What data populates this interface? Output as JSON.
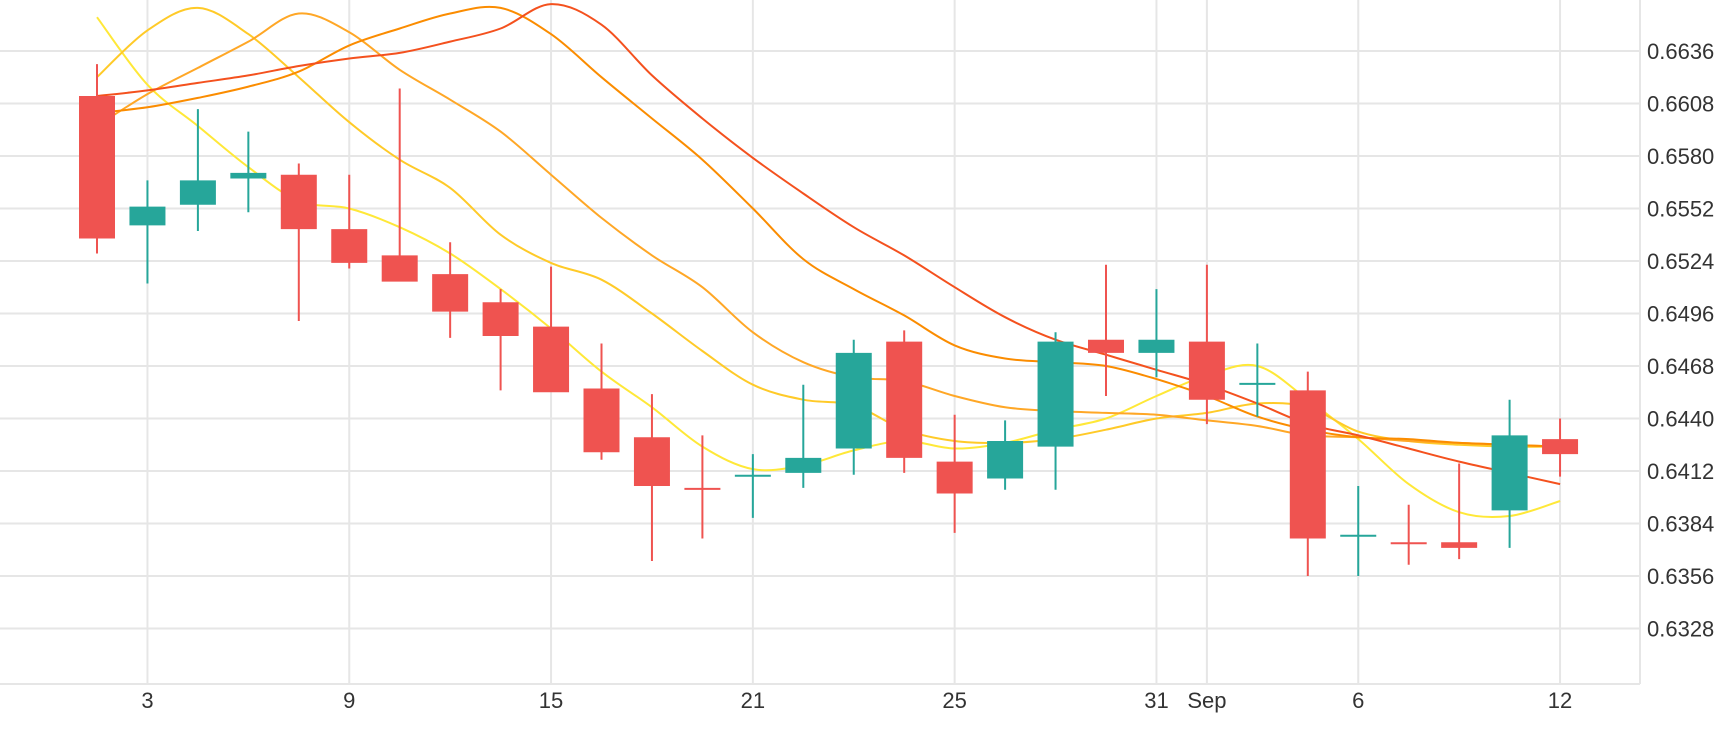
{
  "chart_data": {
    "type": "candlestick",
    "title": "",
    "xlabel": "",
    "ylabel": "",
    "x_ticks": [
      "3",
      "9",
      "15",
      "21",
      "25",
      "31",
      "Sep",
      "6",
      "12"
    ],
    "y_ticks": [
      "0.6636",
      "0.6608",
      "0.6580",
      "0.6552",
      "0.6524",
      "0.6496",
      "0.6468",
      "0.6440",
      "0.6412",
      "0.6384",
      "0.6356",
      "0.6328"
    ],
    "ylim": [
      0.63,
      0.6665
    ],
    "grid": true,
    "colors": {
      "up": "#26a69a",
      "down": "#ef5350"
    },
    "candles": [
      {
        "date": "Aug 2",
        "open": 0.6612,
        "high": 0.6629,
        "low": 0.6528,
        "close": 0.6536
      },
      {
        "date": "Aug 3",
        "open": 0.6543,
        "high": 0.6567,
        "low": 0.6512,
        "close": 0.6553
      },
      {
        "date": "Aug 4",
        "open": 0.6554,
        "high": 0.6605,
        "low": 0.654,
        "close": 0.6567
      },
      {
        "date": "Aug 5",
        "open": 0.6568,
        "high": 0.6593,
        "low": 0.655,
        "close": 0.6571
      },
      {
        "date": "Aug 8",
        "open": 0.657,
        "high": 0.6576,
        "low": 0.6492,
        "close": 0.6541
      },
      {
        "date": "Aug 9",
        "open": 0.6541,
        "high": 0.657,
        "low": 0.652,
        "close": 0.6523
      },
      {
        "date": "Aug 10",
        "open": 0.6527,
        "high": 0.6616,
        "low": 0.6514,
        "close": 0.6513
      },
      {
        "date": "Aug 11",
        "open": 0.6517,
        "high": 0.6534,
        "low": 0.6483,
        "close": 0.6497
      },
      {
        "date": "Aug 12",
        "open": 0.6502,
        "high": 0.6509,
        "low": 0.6455,
        "close": 0.6484
      },
      {
        "date": "Aug 15",
        "open": 0.6489,
        "high": 0.6521,
        "low": 0.6455,
        "close": 0.6454
      },
      {
        "date": "Aug 16",
        "open": 0.6456,
        "high": 0.648,
        "low": 0.6418,
        "close": 0.6422
      },
      {
        "date": "Aug 17",
        "open": 0.643,
        "high": 0.6453,
        "low": 0.6364,
        "close": 0.6404
      },
      {
        "date": "Aug 18",
        "open": 0.6403,
        "high": 0.6431,
        "low": 0.6376,
        "close": 0.6402
      },
      {
        "date": "Aug 19",
        "open": 0.641,
        "high": 0.6421,
        "low": 0.6387,
        "close": 0.641
      },
      {
        "date": "Aug 22",
        "open": 0.6411,
        "high": 0.6458,
        "low": 0.6403,
        "close": 0.6419
      },
      {
        "date": "Aug 23",
        "open": 0.6424,
        "high": 0.6482,
        "low": 0.641,
        "close": 0.6475
      },
      {
        "date": "Aug 24",
        "open": 0.6481,
        "high": 0.6487,
        "low": 0.6411,
        "close": 0.6419
      },
      {
        "date": "Aug 25",
        "open": 0.6417,
        "high": 0.6442,
        "low": 0.6379,
        "close": 0.64
      },
      {
        "date": "Aug 26",
        "open": 0.6408,
        "high": 0.6439,
        "low": 0.6402,
        "close": 0.6428
      },
      {
        "date": "Aug 29",
        "open": 0.6425,
        "high": 0.6486,
        "low": 0.6402,
        "close": 0.6481
      },
      {
        "date": "Aug 30",
        "open": 0.6482,
        "high": 0.6522,
        "low": 0.6452,
        "close": 0.6475
      },
      {
        "date": "Aug 31",
        "open": 0.6475,
        "high": 0.6509,
        "low": 0.6462,
        "close": 0.6482
      },
      {
        "date": "Sep 1",
        "open": 0.6481,
        "high": 0.6522,
        "low": 0.6437,
        "close": 0.645
      },
      {
        "date": "Sep 2",
        "open": 0.6459,
        "high": 0.648,
        "low": 0.6441,
        "close": 0.6459
      },
      {
        "date": "Sep 5",
        "open": 0.6455,
        "high": 0.6465,
        "low": 0.6356,
        "close": 0.6376
      },
      {
        "date": "Sep 6",
        "open": 0.6378,
        "high": 0.6404,
        "low": 0.6356,
        "close": 0.6378
      },
      {
        "date": "Sep 7",
        "open": 0.6374,
        "high": 0.6394,
        "low": 0.6362,
        "close": 0.6373
      },
      {
        "date": "Sep 8",
        "open": 0.6374,
        "high": 0.6416,
        "low": 0.6365,
        "close": 0.6371
      },
      {
        "date": "Sep 9",
        "open": 0.6391,
        "high": 0.645,
        "low": 0.6371,
        "close": 0.6431
      },
      {
        "date": "Sep 12",
        "open": 0.6429,
        "high": 0.644,
        "low": 0.6409,
        "close": 0.6421
      }
    ],
    "lines": [
      {
        "color": "#ffe838",
        "values": [
          0.6654,
          0.6618,
          0.6596,
          0.6574,
          0.6556,
          0.6552,
          0.6542,
          0.6528,
          0.6509,
          0.6488,
          0.6465,
          0.6446,
          0.6425,
          0.6413,
          0.6415,
          0.6423,
          0.6428,
          0.6424,
          0.6427,
          0.6434,
          0.644,
          0.6452,
          0.6463,
          0.6468,
          0.645,
          0.6429,
          0.6405,
          0.639,
          0.6388,
          0.6396
        ]
      },
      {
        "color": "#ffca28",
        "values": [
          0.6622,
          0.6647,
          0.6659,
          0.6645,
          0.6622,
          0.6598,
          0.6578,
          0.6563,
          0.6538,
          0.6523,
          0.6514,
          0.6496,
          0.6476,
          0.6458,
          0.645,
          0.6447,
          0.6434,
          0.6428,
          0.6427,
          0.6429,
          0.6434,
          0.644,
          0.6443,
          0.6448,
          0.6446,
          0.6433,
          0.6428,
          0.6426,
          0.6425,
          0.6425
        ]
      },
      {
        "color": "#ffa726",
        "values": [
          0.6596,
          0.6613,
          0.6627,
          0.6641,
          0.6656,
          0.6646,
          0.6626,
          0.661,
          0.6593,
          0.657,
          0.6547,
          0.6527,
          0.651,
          0.6486,
          0.647,
          0.6462,
          0.646,
          0.6452,
          0.6446,
          0.6444,
          0.6443,
          0.6442,
          0.6439,
          0.6436,
          0.6431,
          0.643,
          0.6428,
          0.6427,
          0.6426,
          0.6425
        ]
      },
      {
        "color": "#fb8c00",
        "values": [
          0.6603,
          0.6606,
          0.6611,
          0.6617,
          0.6625,
          0.6639,
          0.6648,
          0.6656,
          0.6659,
          0.6645,
          0.6622,
          0.66,
          0.6578,
          0.6552,
          0.6525,
          0.6509,
          0.6495,
          0.6479,
          0.6472,
          0.647,
          0.6468,
          0.6461,
          0.6452,
          0.6441,
          0.6434,
          0.643,
          0.6429,
          0.6427,
          0.6426,
          0.6425
        ]
      },
      {
        "color": "#f4511e",
        "values": [
          0.6612,
          0.6615,
          0.6619,
          0.6623,
          0.6628,
          0.6632,
          0.6635,
          0.6641,
          0.6648,
          0.6661,
          0.665,
          0.6623,
          0.66,
          0.6579,
          0.656,
          0.6542,
          0.6527,
          0.651,
          0.6494,
          0.6482,
          0.6474,
          0.6466,
          0.6458,
          0.6448,
          0.6437,
          0.6431,
          0.6424,
          0.6417,
          0.6411,
          0.6405
        ]
      }
    ]
  }
}
